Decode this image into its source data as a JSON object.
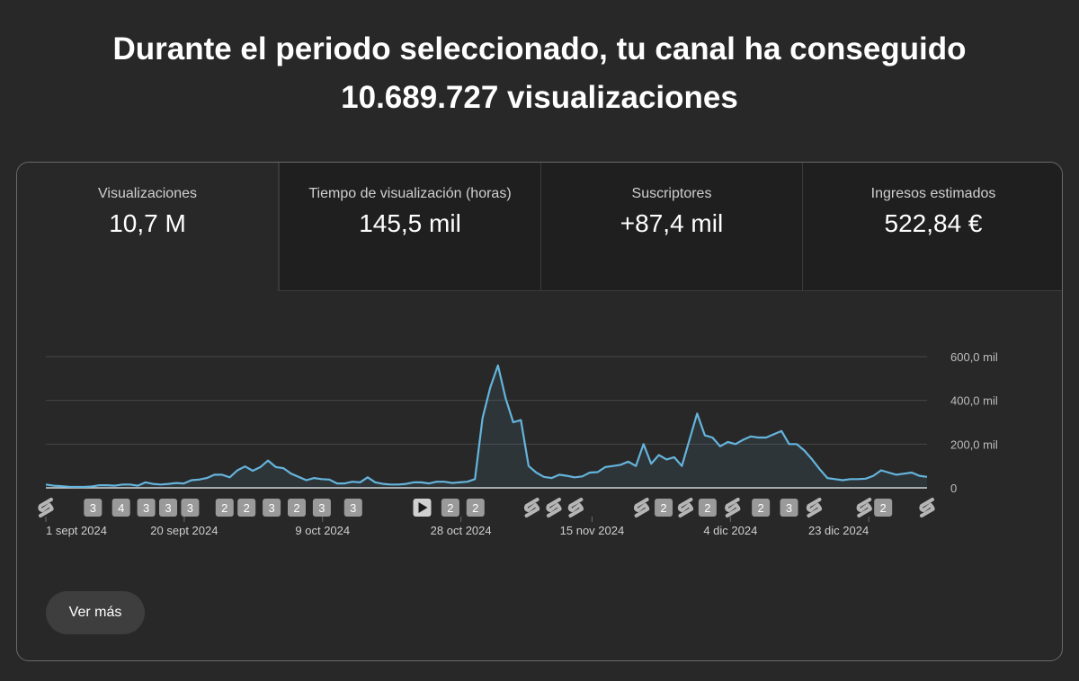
{
  "headline": {
    "line1": "Durante el periodo seleccionado, tu canal ha conseguido",
    "line2": "10.689.727 visualizaciones"
  },
  "tabs": [
    {
      "label": "Visualizaciones",
      "value": "10,7 M",
      "active": true
    },
    {
      "label": "Tiempo de visualización (horas)",
      "value": "145,5 mil",
      "active": false
    },
    {
      "label": "Suscriptores",
      "value": "+87,4 mil",
      "active": false
    },
    {
      "label": "Ingresos estimados",
      "value": "522,84 €",
      "active": false
    }
  ],
  "chart_data": {
    "type": "area",
    "x_start_date": "2024-09-01",
    "x_end_date": "2024-12-31",
    "ylim": [
      0,
      600000
    ],
    "y_ticks": [
      {
        "value": 0,
        "label": "0"
      },
      {
        "value": 200000,
        "label": "200,0 mil"
      },
      {
        "value": 400000,
        "label": "400,0 mil"
      },
      {
        "value": 600000,
        "label": "600,0 mil"
      }
    ],
    "x_ticks": [
      {
        "date": "2024-09-01",
        "label": "1 sept 2024"
      },
      {
        "date": "2024-09-20",
        "label": "20 sept 2024"
      },
      {
        "date": "2024-10-09",
        "label": "9 oct 2024"
      },
      {
        "date": "2024-10-28",
        "label": "28 oct 2024"
      },
      {
        "date": "2024-11-15",
        "label": "15 nov 2024"
      },
      {
        "date": "2024-12-04",
        "label": "4 dic 2024"
      },
      {
        "date": "2024-12-23",
        "label": "23 dic 2024"
      }
    ],
    "line_color": "#65b4dc",
    "fill_color": "#65b4dc",
    "grid": true,
    "series": [
      {
        "values": [
          [
            0,
            15000
          ],
          [
            1,
            10000
          ],
          [
            2,
            8000
          ],
          [
            3,
            5000
          ],
          [
            4,
            4000
          ],
          [
            5,
            4000
          ],
          [
            6,
            6000
          ],
          [
            7,
            12000
          ],
          [
            8,
            12000
          ],
          [
            9,
            10000
          ],
          [
            10,
            15000
          ],
          [
            11,
            15000
          ],
          [
            12,
            10000
          ],
          [
            13,
            25000
          ],
          [
            14,
            18000
          ],
          [
            15,
            15000
          ],
          [
            16,
            18000
          ],
          [
            17,
            22000
          ],
          [
            18,
            20000
          ],
          [
            19,
            35000
          ],
          [
            20,
            38000
          ],
          [
            21,
            45000
          ],
          [
            22,
            60000
          ],
          [
            23,
            60000
          ],
          [
            24,
            48000
          ],
          [
            25,
            80000
          ],
          [
            26,
            98000
          ],
          [
            27,
            78000
          ],
          [
            28,
            95000
          ],
          [
            29,
            125000
          ],
          [
            30,
            95000
          ],
          [
            31,
            90000
          ],
          [
            32,
            65000
          ],
          [
            33,
            50000
          ],
          [
            34,
            35000
          ],
          [
            35,
            45000
          ],
          [
            36,
            40000
          ],
          [
            37,
            38000
          ],
          [
            38,
            20000
          ],
          [
            39,
            20000
          ],
          [
            40,
            28000
          ],
          [
            41,
            25000
          ],
          [
            42,
            48000
          ],
          [
            43,
            25000
          ],
          [
            44,
            18000
          ],
          [
            45,
            15000
          ],
          [
            46,
            15000
          ],
          [
            47,
            18000
          ],
          [
            48,
            25000
          ],
          [
            49,
            25000
          ],
          [
            50,
            20000
          ],
          [
            51,
            28000
          ],
          [
            52,
            28000
          ],
          [
            53,
            22000
          ],
          [
            54,
            25000
          ],
          [
            55,
            28000
          ],
          [
            56,
            40000
          ],
          [
            57,
            320000
          ],
          [
            58,
            460000
          ],
          [
            59,
            560000
          ],
          [
            60,
            410000
          ],
          [
            61,
            300000
          ],
          [
            62,
            310000
          ],
          [
            63,
            100000
          ],
          [
            64,
            70000
          ],
          [
            65,
            50000
          ],
          [
            66,
            45000
          ],
          [
            67,
            60000
          ],
          [
            68,
            55000
          ],
          [
            69,
            48000
          ],
          [
            70,
            52000
          ],
          [
            71,
            70000
          ],
          [
            72,
            72000
          ],
          [
            73,
            95000
          ],
          [
            74,
            100000
          ],
          [
            75,
            105000
          ],
          [
            76,
            120000
          ],
          [
            77,
            100000
          ],
          [
            78,
            200000
          ],
          [
            79,
            110000
          ],
          [
            80,
            150000
          ],
          [
            81,
            130000
          ],
          [
            82,
            140000
          ],
          [
            83,
            100000
          ],
          [
            84,
            220000
          ],
          [
            85,
            340000
          ],
          [
            86,
            240000
          ],
          [
            87,
            230000
          ],
          [
            88,
            190000
          ],
          [
            89,
            210000
          ],
          [
            90,
            200000
          ],
          [
            91,
            220000
          ],
          [
            92,
            235000
          ],
          [
            93,
            230000
          ],
          [
            94,
            230000
          ],
          [
            95,
            245000
          ],
          [
            96,
            260000
          ],
          [
            97,
            200000
          ],
          [
            98,
            200000
          ],
          [
            99,
            170000
          ],
          [
            100,
            130000
          ],
          [
            101,
            85000
          ],
          [
            102,
            45000
          ],
          [
            103,
            40000
          ],
          [
            104,
            35000
          ],
          [
            105,
            40000
          ],
          [
            106,
            40000
          ],
          [
            107,
            42000
          ],
          [
            108,
            55000
          ],
          [
            109,
            80000
          ],
          [
            110,
            70000
          ],
          [
            111,
            60000
          ],
          [
            112,
            65000
          ],
          [
            113,
            70000
          ],
          [
            114,
            55000
          ],
          [
            115,
            50000
          ]
        ]
      }
    ],
    "markers": [
      {
        "day": 0,
        "type": "shorts-icon"
      },
      {
        "day": 15,
        "type": "badge",
        "label": "3"
      },
      {
        "day": 24,
        "type": "badge",
        "label": "4"
      },
      {
        "day": 32,
        "type": "badge",
        "label": "3"
      },
      {
        "day": 39,
        "type": "badge",
        "label": "3"
      },
      {
        "day": 46,
        "type": "badge",
        "label": "3"
      },
      {
        "day": 57,
        "type": "badge",
        "label": "2"
      },
      {
        "day": 64,
        "type": "badge",
        "label": "2"
      },
      {
        "day": 72,
        "type": "badge",
        "label": "3"
      },
      {
        "day": 80,
        "type": "badge",
        "label": "2"
      },
      {
        "day": 88,
        "type": "badge",
        "label": "3"
      },
      {
        "day": 98,
        "type": "badge",
        "label": "3"
      },
      {
        "day": 120,
        "type": "play-icon"
      },
      {
        "day": 129,
        "type": "badge",
        "label": "2"
      },
      {
        "day": 137,
        "type": "badge",
        "label": "2"
      },
      {
        "day": 155,
        "type": "shorts-icon"
      },
      {
        "day": 162,
        "type": "shorts-icon"
      },
      {
        "day": 169,
        "type": "shorts-icon"
      },
      {
        "day": 190,
        "type": "shorts-icon"
      },
      {
        "day": 197,
        "type": "badge",
        "label": "2"
      },
      {
        "day": 204,
        "type": "shorts-icon"
      },
      {
        "day": 211,
        "type": "badge",
        "label": "2"
      },
      {
        "day": 219,
        "type": "shorts-icon"
      },
      {
        "day": 228,
        "type": "badge",
        "label": "2"
      },
      {
        "day": 237,
        "type": "badge",
        "label": "3"
      },
      {
        "day": 245,
        "type": "shorts-icon"
      },
      {
        "day": 261,
        "type": "shorts-icon"
      },
      {
        "day": 267,
        "type": "badge",
        "label": "2"
      },
      {
        "day": 281,
        "type": "shorts-icon"
      }
    ]
  },
  "more_button": {
    "label": "Ver más"
  }
}
